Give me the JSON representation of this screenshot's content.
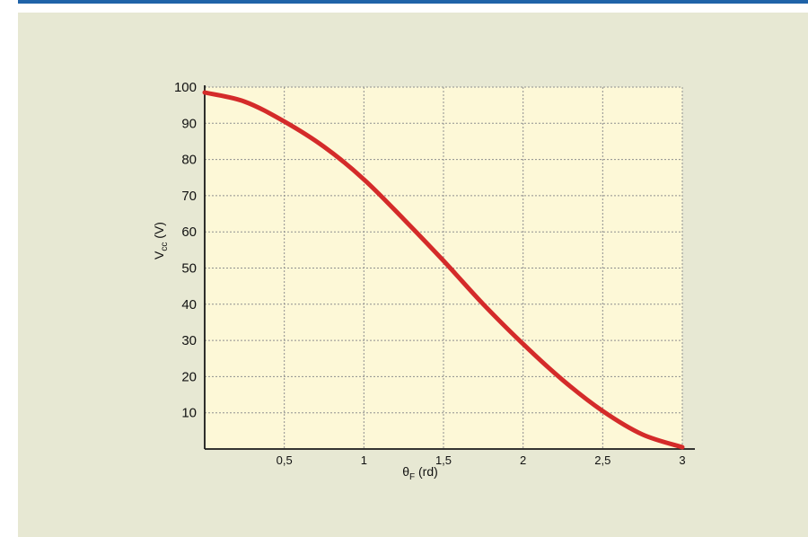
{
  "colors": {
    "rule": "#1f63a8",
    "panel": "#e7e8d3",
    "plot": "#fdf8d7",
    "grid": "#8f8f8f",
    "axis": "#1a1a1a",
    "curve": "#d42b2a"
  },
  "chart_data": {
    "type": "line",
    "title": "",
    "xlabel": {
      "main": "θ",
      "sub": "F",
      "unit": " (rd)"
    },
    "ylabel": {
      "main": "V",
      "sub": "cc",
      "unit": " (V)"
    },
    "xlim": [
      0,
      3
    ],
    "ylim": [
      0,
      100
    ],
    "grid": true,
    "legend": "none",
    "x_ticks": [
      {
        "value": 0.5,
        "label": "0,5"
      },
      {
        "value": 1,
        "label": "1"
      },
      {
        "value": 1.5,
        "label": "1,5"
      },
      {
        "value": 2,
        "label": "2"
      },
      {
        "value": 2.5,
        "label": "2,5"
      },
      {
        "value": 3,
        "label": "3"
      }
    ],
    "y_ticks": [
      {
        "value": 10,
        "label": "10"
      },
      {
        "value": 20,
        "label": "20"
      },
      {
        "value": 30,
        "label": "30"
      },
      {
        "value": 40,
        "label": "40"
      },
      {
        "value": 50,
        "label": "50"
      },
      {
        "value": 60,
        "label": "60"
      },
      {
        "value": 70,
        "label": "70"
      },
      {
        "value": 80,
        "label": "80"
      },
      {
        "value": 90,
        "label": "90"
      },
      {
        "value": 100,
        "label": "100"
      }
    ],
    "series": [
      {
        "x": [
          0,
          0.25,
          0.5,
          0.75,
          1,
          1.25,
          1.5,
          1.75,
          2,
          2.25,
          2.5,
          2.75,
          3
        ],
        "y": [
          98.5,
          96,
          90.5,
          83.5,
          74.5,
          63.5,
          52,
          40,
          29,
          19,
          10.5,
          4,
          0.5
        ]
      }
    ]
  }
}
